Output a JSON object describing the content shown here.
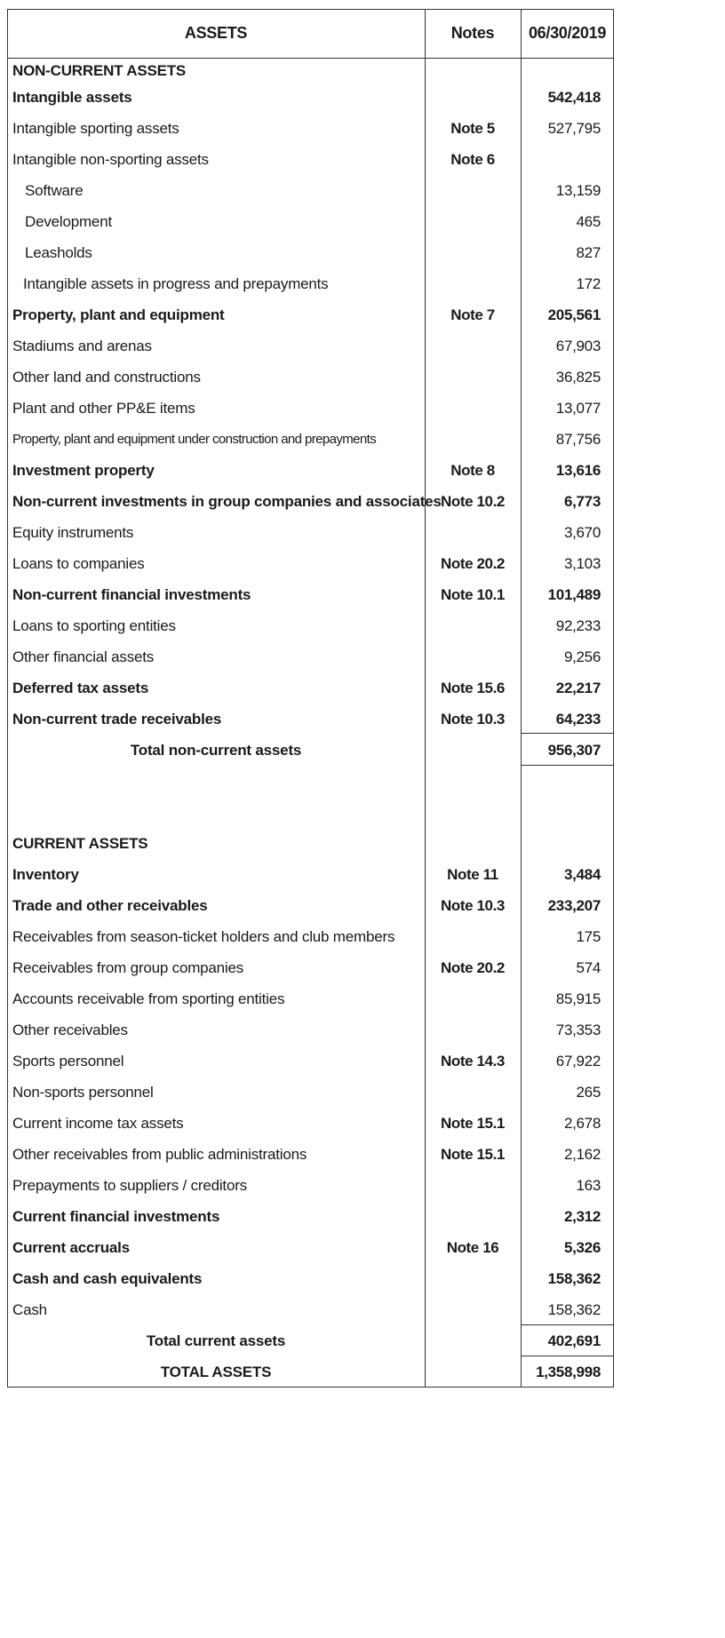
{
  "header": {
    "assets": "ASSETS",
    "notes": "Notes",
    "date": "06/30/2019"
  },
  "non_current": {
    "section_title": "NON-CURRENT ASSETS",
    "rows": [
      {
        "label": "Intangible assets",
        "note": "",
        "value": "542,418",
        "bold": true
      },
      {
        "label": "Intangible sporting assets",
        "note": "Note 5",
        "value": "527,795"
      },
      {
        "label": "Intangible non-sporting assets",
        "note": "Note 6",
        "value": ""
      },
      {
        "label": "Software",
        "note": "",
        "value": "13,159",
        "indent": true
      },
      {
        "label": "Development",
        "note": "",
        "value": "465",
        "indent": true
      },
      {
        "label": "Leasholds",
        "note": "",
        "value": "827",
        "indent": true
      },
      {
        "label": "Intangible assets in progress and prepayments",
        "note": "",
        "value": "172",
        "indent2": true
      },
      {
        "label": "Property, plant and equipment",
        "note": "Note 7",
        "value": "205,561",
        "bold": true
      },
      {
        "label": "Stadiums and arenas",
        "note": "",
        "value": "67,903"
      },
      {
        "label": "Other land and constructions",
        "note": "",
        "value": "36,825"
      },
      {
        "label": "Plant and other PP&E items",
        "note": "",
        "value": "13,077"
      },
      {
        "label": "Property, plant and equipment under construction and prepayments",
        "note": "",
        "value": "87,756",
        "small": true
      },
      {
        "label": "Investment property",
        "note": "Note 8",
        "value": "13,616",
        "bold": true
      },
      {
        "label": "Non-current investments in group companies and associates",
        "note": "Note 10.2",
        "value": "6,773",
        "bold": true
      },
      {
        "label": "Equity instruments",
        "note": "",
        "value": "3,670"
      },
      {
        "label": "Loans to companies",
        "note": "Note 20.2",
        "value": "3,103"
      },
      {
        "label": "Non-current financial investments",
        "note": "Note 10.1",
        "value": "101,489",
        "bold": true
      },
      {
        "label": "Loans to sporting entities",
        "note": "",
        "value": "92,233"
      },
      {
        "label": "Other financial assets",
        "note": "",
        "value": "9,256"
      },
      {
        "label": "Deferred tax assets",
        "note": "Note 15.6",
        "value": "22,217",
        "bold": true
      },
      {
        "label": "Non-current trade receivables",
        "note": "Note 10.3",
        "value": "64,233",
        "bold": true
      }
    ],
    "total_label": "Total non-current assets",
    "total_value": "956,307"
  },
  "current": {
    "section_title": "CURRENT ASSETS",
    "rows": [
      {
        "label": "Inventory",
        "note": "Note 11",
        "value": "3,484",
        "bold": true
      },
      {
        "label": "Trade and other receivables",
        "note": "Note 10.3",
        "value": "233,207",
        "bold": true
      },
      {
        "label": "Receivables from season-ticket holders and club members",
        "note": "",
        "value": "175"
      },
      {
        "label": "Receivables from group companies",
        "note": "Note 20.2",
        "value": "574"
      },
      {
        "label": "Accounts receivable from sporting entities",
        "note": "",
        "value": "85,915"
      },
      {
        "label": "Other receivables",
        "note": "",
        "value": "73,353"
      },
      {
        "label": "Sports personnel",
        "note": "Note 14.3",
        "value": "67,922"
      },
      {
        "label": "Non-sports personnel",
        "note": "",
        "value": "265"
      },
      {
        "label": "Current income tax assets",
        "note": "Note 15.1",
        "value": "2,678"
      },
      {
        "label": "Other receivables from public administrations",
        "note": "Note 15.1",
        "value": "2,162"
      },
      {
        "label": "Prepayments to suppliers / creditors",
        "note": "",
        "value": "163"
      },
      {
        "label": "Current financial investments",
        "note": "",
        "value": "2,312",
        "bold": true
      },
      {
        "label": "Current accruals",
        "note": "Note 16",
        "value": "5,326",
        "bold": true
      },
      {
        "label": "Cash and cash equivalents",
        "note": "",
        "value": "158,362",
        "bold": true
      },
      {
        "label": "Cash",
        "note": "",
        "value": "158,362"
      }
    ],
    "total_label": "Total current assets",
    "total_value": "402,691"
  },
  "grand_total": {
    "label": "TOTAL ASSETS",
    "value": "1,358,998"
  }
}
